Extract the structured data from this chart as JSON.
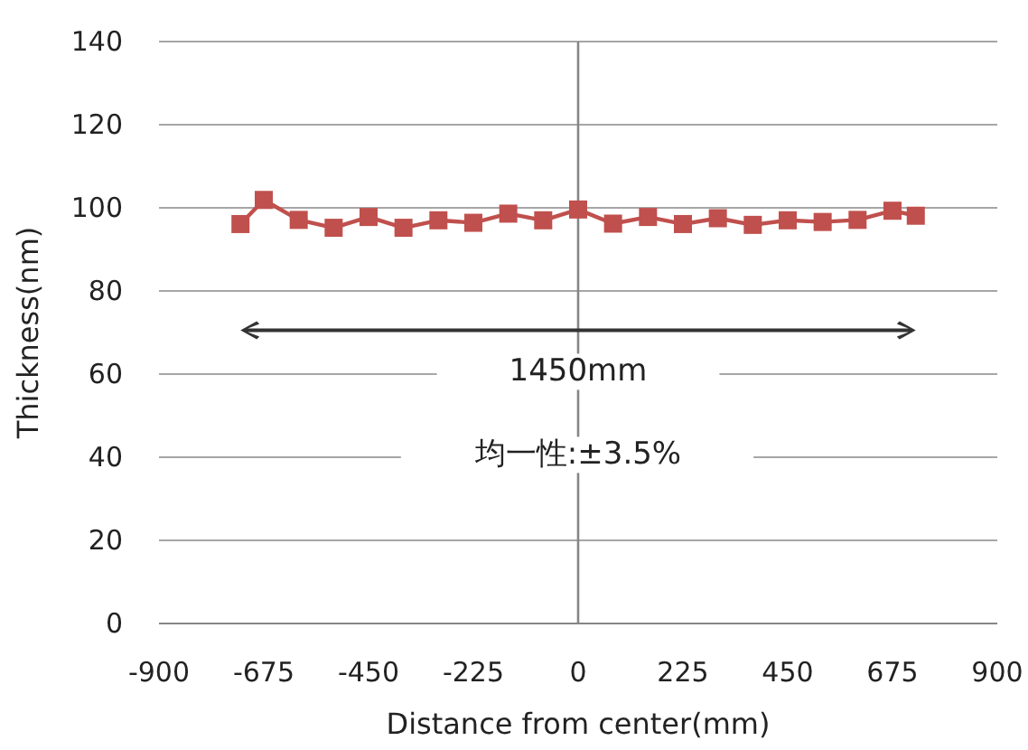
{
  "chart_data": {
    "type": "line",
    "xlabel": "Distance  from center(mm)",
    "ylabel": "Thickness(nm)",
    "x": [
      -725,
      -675,
      -600,
      -525,
      -450,
      -375,
      -300,
      -225,
      -150,
      -75,
      0,
      75,
      150,
      225,
      300,
      375,
      450,
      525,
      600,
      675,
      725
    ],
    "series": [
      {
        "color": "#c0504d",
        "values": [
          96.1,
          101.9,
          97.1,
          95.2,
          97.8,
          95.2,
          97.0,
          96.4,
          98.6,
          97.0,
          99.6,
          96.2,
          97.8,
          96.1,
          97.5,
          95.9,
          97.0,
          96.6,
          97.1,
          99.3,
          98.1
        ]
      }
    ],
    "xlim": [
      -900,
      900
    ],
    "xticks": [
      -900,
      -675,
      -450,
      -225,
      0,
      225,
      450,
      675,
      900
    ],
    "ylim": [
      0,
      140
    ],
    "yticks": [
      0,
      20,
      40,
      60,
      80,
      100,
      120,
      140
    ],
    "grid": "y",
    "marker": "square",
    "line_style": "solid",
    "ref_lines": [
      {
        "axis": "x",
        "value": 0,
        "color": "#868686"
      }
    ],
    "annotations": [
      {
        "text": "1450mm",
        "x": 0,
        "y": 61
      },
      {
        "text": "均一性:±3.5%",
        "x": 0,
        "y": 41
      }
    ]
  }
}
